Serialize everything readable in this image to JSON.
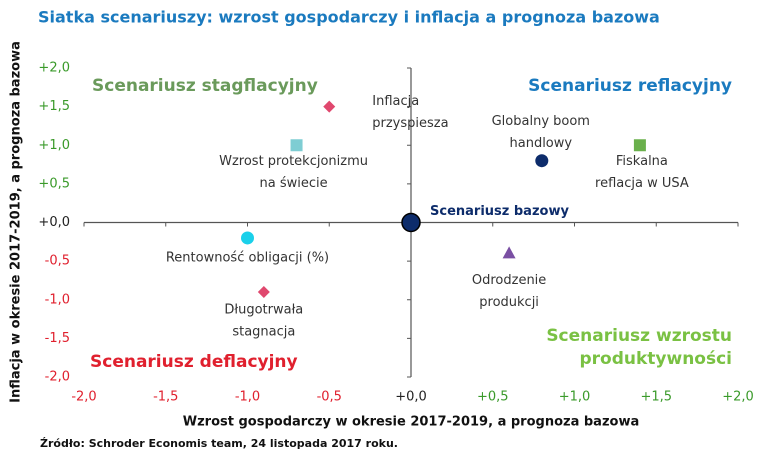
{
  "chart_data": {
    "type": "scatter",
    "title": "Siatka scenariuszy: wzrost gospodarczy i inflacja a prognoza bazowa",
    "x_label": "Wzrost gospodarczy w okresie 2017-2019, a prognoza bazowa",
    "y_label": "Inflacja w okresie 2017-2019, a prognoza bazowa",
    "source": "Źródło: Schroder Economis team, 24 listopada 2017 roku.",
    "xlim": [
      -2,
      2
    ],
    "ylim": [
      -2,
      2
    ],
    "xticks": [
      {
        "value": -2,
        "label": "-2,0"
      },
      {
        "value": -1.5,
        "label": "-1,5"
      },
      {
        "value": -1,
        "label": "-1,0"
      },
      {
        "value": -0.5,
        "label": "-0,5"
      },
      {
        "value": 0,
        "label": "+0,0"
      },
      {
        "value": 0.5,
        "label": "+0,5"
      },
      {
        "value": 1,
        "label": "+1,0"
      },
      {
        "value": 1.5,
        "label": "+1,5"
      },
      {
        "value": 2,
        "label": "+2,0"
      }
    ],
    "yticks": [
      {
        "value": -2,
        "label": "-2,0"
      },
      {
        "value": -1.5,
        "label": "-1,5"
      },
      {
        "value": -1,
        "label": "-1,0"
      },
      {
        "value": -0.5,
        "label": "-0,5"
      },
      {
        "value": 0,
        "label": "+0,0"
      },
      {
        "value": 0.5,
        "label": "+0,5"
      },
      {
        "value": 1,
        "label": "+1,0"
      },
      {
        "value": 1.5,
        "label": "+1,5"
      },
      {
        "value": 2,
        "label": "+2,0"
      }
    ],
    "positive_tick_color": "#3a9a2a",
    "negative_tick_color": "#e0202e",
    "zero_tick_color": "#222222",
    "points": [
      {
        "label": [
          "Inflacja",
          "przyspiesza"
        ],
        "x": -0.5,
        "y": 1.5,
        "marker": "diamond",
        "color": "#e0486e"
      },
      {
        "label": [
          "Wzrost protekcjonizmu",
          "na świecie"
        ],
        "x": -0.7,
        "y": 1.0,
        "marker": "square",
        "color": "#7ecdd3"
      },
      {
        "label": [
          "Globalny boom",
          "handlowy"
        ],
        "x": 0.8,
        "y": 0.8,
        "marker": "circle",
        "color": "#0d2c6b"
      },
      {
        "label": [
          "Fiskalna",
          "reflacja w USA"
        ],
        "x": 1.4,
        "y": 1.0,
        "marker": "square",
        "color": "#6ab04c"
      },
      {
        "label": [
          "Scenariusz bazowy"
        ],
        "x": 0,
        "y": 0,
        "marker": "big-circle",
        "color": "#0d2c6b"
      },
      {
        "label": [
          "Rentowność obligacji (%)"
        ],
        "x": -1.0,
        "y": -0.2,
        "marker": "circle",
        "color": "#1ad0ea"
      },
      {
        "label": [
          "Odrodzenie",
          "produkcji"
        ],
        "x": 0.6,
        "y": -0.4,
        "marker": "triangle",
        "color": "#7a4fa3"
      },
      {
        "label": [
          "Długotrwała",
          "stagnacja"
        ],
        "x": -0.9,
        "y": -0.9,
        "marker": "diamond",
        "color": "#e0486e"
      }
    ],
    "annotations": [
      {
        "text": [
          "Scenariusz stagflacyjny"
        ],
        "color": "#6a9a5b"
      },
      {
        "text": [
          "Scenariusz reflacyjny"
        ],
        "color": "#1a7abf"
      },
      {
        "text": [
          "Scenariusz deflacyjny"
        ],
        "color": "#e0202e"
      },
      {
        "text": [
          "Scenariusz wzrostu",
          "produktywności"
        ],
        "color": "#7ac143"
      }
    ]
  }
}
